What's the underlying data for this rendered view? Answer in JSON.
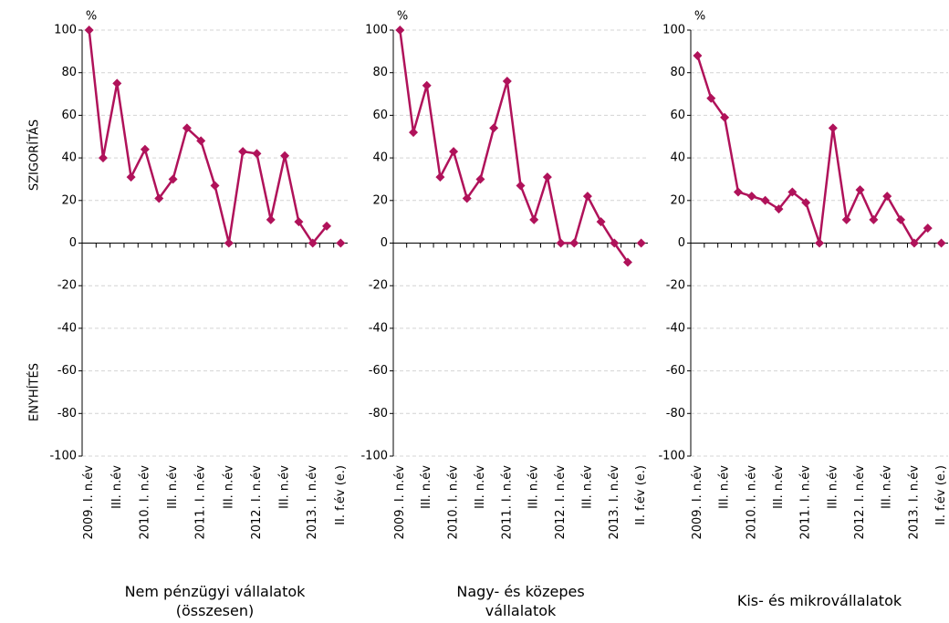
{
  "chart_data": [
    {
      "type": "line",
      "title": "Nem pénzügyi vállalatok (összesen)",
      "unit_label": "%",
      "y_axis_labels": [
        "SZIGORÍTÁS",
        "ENYHÍTÉS"
      ],
      "categories": [
        "2009. I. n.év",
        null,
        "III. n.év",
        null,
        "2010. I. n.év",
        null,
        "III. n.év",
        null,
        "2011. I. n.év",
        null,
        "III. n.év",
        null,
        "2012. I. n.év",
        null,
        "III. n.év",
        null,
        "2013. I. n.év",
        null,
        "II. f.év (e.)"
      ],
      "series": [
        {
          "color": "#b0125a",
          "values": [
            100,
            40,
            75,
            31,
            44,
            21,
            30,
            54,
            48,
            27,
            0,
            43,
            42,
            11,
            41,
            10,
            0,
            8,
            null
          ]
        },
        {
          "color": "#b0125a",
          "values": [
            null,
            null,
            null,
            null,
            null,
            null,
            null,
            null,
            null,
            null,
            null,
            null,
            null,
            null,
            null,
            null,
            null,
            null,
            0
          ]
        }
      ],
      "ylim": [
        -100,
        100
      ],
      "yticks": [
        -100,
        -80,
        -60,
        -40,
        -20,
        0,
        20,
        40,
        60,
        80,
        100
      ],
      "grid": true
    },
    {
      "type": "line",
      "title": "Nagy- és közepes vállalatok",
      "unit_label": "%",
      "categories": [
        "2009. I. n.év",
        null,
        "III. n.év",
        null,
        "2010. I. n.év",
        null,
        "III. n.év",
        null,
        "2011. I. n.év",
        null,
        "III. n.év",
        null,
        "2012. I. n.év",
        null,
        "III. n.év",
        null,
        "2013. I. n.év",
        null,
        "II. f.év (e.)"
      ],
      "series": [
        {
          "color": "#b0125a",
          "values": [
            100,
            52,
            74,
            31,
            43,
            21,
            30,
            54,
            76,
            27,
            11,
            31,
            0,
            0,
            22,
            10,
            0,
            -9,
            null
          ]
        },
        {
          "color": "#b0125a",
          "values": [
            null,
            null,
            null,
            null,
            null,
            null,
            null,
            null,
            null,
            null,
            null,
            null,
            null,
            null,
            null,
            null,
            null,
            null,
            0
          ]
        }
      ],
      "ylim": [
        -100,
        100
      ],
      "yticks": [
        -100,
        -80,
        -60,
        -40,
        -20,
        0,
        20,
        40,
        60,
        80,
        100
      ],
      "grid": true
    },
    {
      "type": "line",
      "title": "Kis- és mikrovállalatok",
      "unit_label": "%",
      "categories": [
        "2009. I. n.év",
        null,
        "III. n.év",
        null,
        "2010. I. n.év",
        null,
        "III. n.év",
        null,
        "2011. I. n.év",
        null,
        "III. n.év",
        null,
        "2012. I. n.év",
        null,
        "III. n.év",
        null,
        "2013. I. n.év",
        null,
        "II. f.év (e.)"
      ],
      "series": [
        {
          "color": "#b0125a",
          "values": [
            88,
            68,
            59,
            24,
            22,
            20,
            16,
            24,
            19,
            0,
            54,
            11,
            25,
            11,
            22,
            11,
            0,
            7,
            null
          ]
        },
        {
          "color": "#b0125a",
          "values": [
            null,
            null,
            null,
            null,
            null,
            null,
            null,
            null,
            null,
            null,
            null,
            null,
            null,
            null,
            null,
            null,
            null,
            null,
            0
          ]
        }
      ],
      "ylim": [
        -100,
        100
      ],
      "yticks": [
        -100,
        -80,
        -60,
        -40,
        -20,
        0,
        20,
        40,
        60,
        80,
        100
      ],
      "grid": true
    }
  ]
}
